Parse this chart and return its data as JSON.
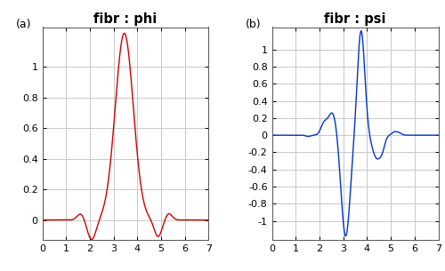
{
  "title_phi": "fibr : phi",
  "title_psi": "fibr : psi",
  "label_a": "(a)",
  "label_b": "(b)",
  "line_color_phi": "#cc0000",
  "line_color_psi": "#0033cc",
  "xlim": [
    0,
    7
  ],
  "ylim_phi": [
    -0.13,
    1.26
  ],
  "ylim_psi": [
    -1.22,
    1.26
  ],
  "yticks_phi": [
    0,
    0.2,
    0.4,
    0.6,
    0.8,
    1.0
  ],
  "yticks_psi": [
    -1.0,
    -0.8,
    -0.6,
    -0.4,
    -0.2,
    0,
    0.2,
    0.4,
    0.6,
    0.8,
    1.0
  ],
  "xticks": [
    0,
    1,
    2,
    3,
    4,
    5,
    6,
    7
  ],
  "grid_color": "#c8c8c8",
  "bg_color": "#ffffff",
  "title_fontsize": 10.5,
  "label_fontsize": 9,
  "tick_fontsize": 8,
  "line_width": 1.0
}
